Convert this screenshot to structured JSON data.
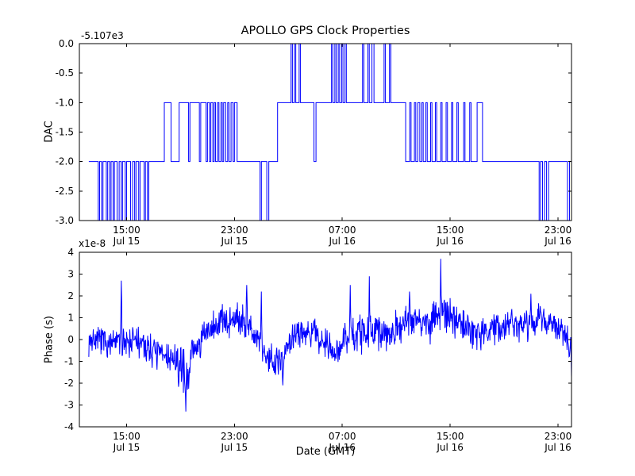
{
  "title": "APOLLO GPS Clock Properties",
  "chart_data": [
    {
      "type": "line",
      "subplot": "top",
      "title": "APOLLO GPS Clock Properties",
      "ylabel": "DAC",
      "offset_label": "-5.107e3",
      "line_color": "#0000ff",
      "x_unit": "hours since Jul 15 12:00 GMT",
      "xlim": [
        -0.5,
        36.0
      ],
      "ylim": [
        -3.0,
        0.0
      ],
      "grid": false,
      "yticks": [
        {
          "v": 0.0,
          "label": "0.0"
        },
        {
          "v": -0.5,
          "label": "-0.5"
        },
        {
          "v": -1.0,
          "label": "-1.0"
        },
        {
          "v": -1.5,
          "label": "-1.5"
        },
        {
          "v": -2.0,
          "label": "-2.0"
        },
        {
          "v": -2.5,
          "label": "-2.5"
        },
        {
          "v": -3.0,
          "label": "-3.0"
        }
      ],
      "xticks": [
        {
          "x": 3,
          "time": "15:00",
          "date": "Jul 15"
        },
        {
          "x": 11,
          "time": "23:00",
          "date": "Jul 15"
        },
        {
          "x": 19,
          "time": "07:00",
          "date": "Jul 16"
        },
        {
          "x": 27,
          "time": "15:00",
          "date": "Jul 16"
        },
        {
          "x": 35,
          "time": "23:00",
          "date": "Jul 16"
        }
      ],
      "steps": [
        [
          0.2,
          -2
        ],
        [
          0.9,
          -3
        ],
        [
          1.0,
          -2
        ],
        [
          1.15,
          -3
        ],
        [
          1.25,
          -2
        ],
        [
          1.5,
          -3
        ],
        [
          1.6,
          -2
        ],
        [
          1.75,
          -3
        ],
        [
          1.85,
          -2
        ],
        [
          2.0,
          -3
        ],
        [
          2.1,
          -2
        ],
        [
          2.3,
          -3
        ],
        [
          2.45,
          -2
        ],
        [
          2.6,
          -3
        ],
        [
          2.7,
          -2
        ],
        [
          2.9,
          -3
        ],
        [
          3.0,
          -2
        ],
        [
          3.3,
          -3
        ],
        [
          3.45,
          -2
        ],
        [
          3.6,
          -3
        ],
        [
          3.7,
          -2
        ],
        [
          3.9,
          -3
        ],
        [
          4.0,
          -2
        ],
        [
          4.3,
          -3
        ],
        [
          4.4,
          -2
        ],
        [
          4.55,
          -3
        ],
        [
          4.65,
          -2
        ],
        [
          5.8,
          -1
        ],
        [
          6.3,
          -2
        ],
        [
          6.9,
          -1
        ],
        [
          7.6,
          -2
        ],
        [
          7.7,
          -1
        ],
        [
          8.4,
          -2
        ],
        [
          8.5,
          -1
        ],
        [
          8.9,
          -2
        ],
        [
          9.0,
          -1
        ],
        [
          9.15,
          -2
        ],
        [
          9.25,
          -1
        ],
        [
          9.4,
          -2
        ],
        [
          9.5,
          -1
        ],
        [
          9.6,
          -2
        ],
        [
          9.75,
          -1
        ],
        [
          9.85,
          -2
        ],
        [
          10.0,
          -1
        ],
        [
          10.1,
          -2
        ],
        [
          10.2,
          -1
        ],
        [
          10.35,
          -2
        ],
        [
          10.5,
          -1
        ],
        [
          10.6,
          -2
        ],
        [
          10.75,
          -1
        ],
        [
          10.9,
          -2
        ],
        [
          11.0,
          -1
        ],
        [
          11.2,
          -2
        ],
        [
          12.9,
          -3
        ],
        [
          13.0,
          -2
        ],
        [
          13.4,
          -3
        ],
        [
          13.55,
          -2
        ],
        [
          14.2,
          -1
        ],
        [
          15.2,
          0
        ],
        [
          15.3,
          -1
        ],
        [
          15.45,
          0
        ],
        [
          15.55,
          -1
        ],
        [
          15.8,
          0
        ],
        [
          15.9,
          -1
        ],
        [
          16.9,
          -2
        ],
        [
          17.05,
          -1
        ],
        [
          18.2,
          0
        ],
        [
          18.3,
          -1
        ],
        [
          18.45,
          0
        ],
        [
          18.55,
          -1
        ],
        [
          18.7,
          0
        ],
        [
          18.8,
          -1
        ],
        [
          18.95,
          0
        ],
        [
          19.05,
          -1
        ],
        [
          19.2,
          0
        ],
        [
          19.3,
          -1
        ],
        [
          20.5,
          0
        ],
        [
          20.6,
          -1
        ],
        [
          20.9,
          0
        ],
        [
          21.0,
          -1
        ],
        [
          21.2,
          0
        ],
        [
          21.35,
          -1
        ],
        [
          22.1,
          0
        ],
        [
          22.2,
          -1
        ],
        [
          22.5,
          0
        ],
        [
          22.6,
          -1
        ],
        [
          23.7,
          -2
        ],
        [
          24.0,
          -1
        ],
        [
          24.1,
          -2
        ],
        [
          24.35,
          -1
        ],
        [
          24.45,
          -2
        ],
        [
          24.6,
          -1
        ],
        [
          24.75,
          -2
        ],
        [
          24.9,
          -1
        ],
        [
          25.0,
          -2
        ],
        [
          25.2,
          -1
        ],
        [
          25.3,
          -2
        ],
        [
          25.55,
          -1
        ],
        [
          25.65,
          -2
        ],
        [
          25.9,
          -1
        ],
        [
          26.0,
          -2
        ],
        [
          26.3,
          -1
        ],
        [
          26.4,
          -2
        ],
        [
          26.7,
          -1
        ],
        [
          26.8,
          -2
        ],
        [
          27.1,
          -1
        ],
        [
          27.2,
          -2
        ],
        [
          27.5,
          -1
        ],
        [
          27.6,
          -2
        ],
        [
          28.0,
          -1
        ],
        [
          28.1,
          -2
        ],
        [
          28.45,
          -1
        ],
        [
          28.55,
          -2
        ],
        [
          29.0,
          -1
        ],
        [
          29.4,
          -2
        ],
        [
          33.6,
          -3
        ],
        [
          33.7,
          -2
        ],
        [
          33.85,
          -3
        ],
        [
          34.0,
          -2
        ],
        [
          34.15,
          -3
        ],
        [
          34.3,
          -2
        ],
        [
          35.7,
          -3
        ],
        [
          35.85,
          -2
        ],
        [
          36.0,
          -2
        ]
      ]
    },
    {
      "type": "line",
      "subplot": "bottom",
      "ylabel": "Phase (s)",
      "xlabel": "Date (GMT)",
      "scale_label": "x1e-8",
      "line_color": "#0000ff",
      "x_unit": "hours since Jul 15 12:00 GMT",
      "y_unit": "1e-8 s",
      "xlim": [
        -0.5,
        36.0
      ],
      "ylim": [
        -4,
        4
      ],
      "grid": false,
      "yticks": [
        {
          "v": 4,
          "label": "4"
        },
        {
          "v": 3,
          "label": "3"
        },
        {
          "v": 2,
          "label": "2"
        },
        {
          "v": 1,
          "label": "1"
        },
        {
          "v": 0,
          "label": "0"
        },
        {
          "v": -1,
          "label": "-1"
        },
        {
          "v": -2,
          "label": "-2"
        },
        {
          "v": -3,
          "label": "-3"
        },
        {
          "v": -4,
          "label": "-4"
        }
      ],
      "xticks": [
        {
          "x": 3,
          "time": "15:00",
          "date": "Jul 15"
        },
        {
          "x": 11,
          "time": "23:00",
          "date": "Jul 15"
        },
        {
          "x": 19,
          "time": "07:00",
          "date": "Jul 16"
        },
        {
          "x": 27,
          "time": "15:00",
          "date": "Jul 16"
        },
        {
          "x": 35,
          "time": "23:00",
          "date": "Jul 16"
        }
      ],
      "noise": {
        "seed": 7,
        "n": 1200,
        "x_range": [
          0.2,
          36.3
        ],
        "envelope": [
          [
            0,
            0.0,
            0.8
          ],
          [
            2,
            -0.2,
            0.7
          ],
          [
            3,
            0.1,
            0.9
          ],
          [
            5,
            -0.5,
            0.8
          ],
          [
            6.5,
            -1.0,
            1.0
          ],
          [
            7.5,
            -1.5,
            1.1
          ],
          [
            8,
            -0.5,
            0.9
          ],
          [
            9,
            0.3,
            0.8
          ],
          [
            10,
            0.8,
            0.9
          ],
          [
            11.5,
            1.0,
            0.9
          ],
          [
            12.5,
            0.3,
            0.8
          ],
          [
            13.5,
            -0.8,
            0.9
          ],
          [
            14.5,
            -0.9,
            0.9
          ],
          [
            15.5,
            0.2,
            0.7
          ],
          [
            16.5,
            0.5,
            0.8
          ],
          [
            17.5,
            0.0,
            0.7
          ],
          [
            18.5,
            -0.5,
            0.8
          ],
          [
            19.5,
            0.2,
            0.9
          ],
          [
            20.5,
            0.3,
            1.0
          ],
          [
            21.5,
            0.2,
            0.9
          ],
          [
            22.5,
            0.3,
            0.8
          ],
          [
            23.5,
            0.8,
            0.9
          ],
          [
            24.5,
            1.0,
            0.9
          ],
          [
            25.5,
            0.8,
            1.0
          ],
          [
            26.5,
            1.2,
            1.0
          ],
          [
            27.5,
            0.8,
            0.9
          ],
          [
            28.5,
            0.5,
            0.9
          ],
          [
            29.5,
            0.3,
            0.8
          ],
          [
            30.5,
            0.5,
            0.8
          ],
          [
            31.5,
            0.8,
            0.8
          ],
          [
            32.5,
            0.6,
            0.9
          ],
          [
            33.5,
            0.9,
            0.8
          ],
          [
            34.5,
            0.8,
            0.8
          ],
          [
            35.5,
            0.2,
            0.9
          ],
          [
            36.3,
            -0.5,
            0.9
          ]
        ],
        "spikes": [
          [
            2.6,
            2.7
          ],
          [
            7.4,
            -3.3
          ],
          [
            11.9,
            2.5
          ],
          [
            13.0,
            2.2
          ],
          [
            14.6,
            -2.1
          ],
          [
            19.6,
            2.5
          ],
          [
            21.0,
            2.9
          ],
          [
            24.0,
            2.2
          ],
          [
            26.3,
            3.7
          ],
          [
            33.0,
            2.1
          ],
          [
            36.0,
            -1.7
          ]
        ]
      }
    }
  ]
}
